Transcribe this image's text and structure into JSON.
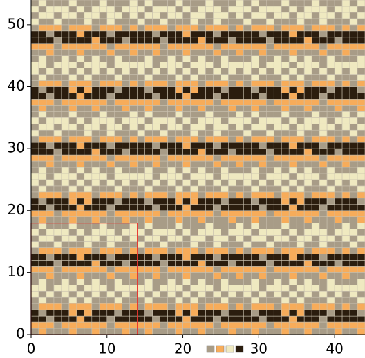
{
  "chart_data": {
    "type": "tile-pattern",
    "palette": [
      "#a89c87",
      "#f7ac5a",
      "#efe9c0",
      "#2b1d0e"
    ],
    "motif": [
      [
        0,
        1,
        0,
        0,
        0,
        1,
        0,
        0,
        1,
        0,
        0,
        0,
        1,
        0
      ],
      [
        1,
        1,
        1,
        0,
        1,
        1,
        1,
        1,
        1,
        1,
        0,
        1,
        1,
        1
      ],
      [
        3,
        3,
        0,
        3,
        3,
        3,
        1,
        3,
        3,
        3,
        0,
        3,
        3,
        3
      ],
      [
        3,
        0,
        3,
        3,
        3,
        1,
        3,
        1,
        3,
        3,
        3,
        0,
        3,
        3
      ],
      [
        0,
        1,
        1,
        1,
        0,
        1,
        1,
        1,
        0,
        1,
        1,
        1,
        0,
        1
      ],
      [
        0,
        2,
        0,
        0,
        0,
        2,
        0,
        2,
        0,
        0,
        0,
        2,
        0,
        0
      ],
      [
        2,
        0,
        2,
        0,
        2,
        0,
        2,
        0,
        2,
        0,
        2,
        0,
        2,
        0
      ],
      [
        2,
        2,
        0,
        2,
        2,
        2,
        0,
        2,
        2,
        2,
        0,
        2,
        2,
        2
      ],
      [
        0,
        2,
        0,
        0,
        2,
        0,
        2,
        0,
        2,
        0,
        0,
        2,
        0,
        0
      ],
      [
        0,
        0,
        1,
        0,
        0,
        0,
        1,
        0,
        0,
        0,
        1,
        0,
        0,
        1
      ],
      [
        1,
        1,
        1,
        0,
        1,
        1,
        1,
        1,
        1,
        1,
        0,
        1,
        1,
        1
      ],
      [
        3,
        3,
        3,
        0,
        3,
        3,
        3,
        3,
        1,
        3,
        3,
        3,
        0,
        3
      ],
      [
        3,
        3,
        0,
        3,
        3,
        3,
        1,
        3,
        3,
        3,
        0,
        3,
        3,
        3
      ],
      [
        0,
        1,
        1,
        1,
        0,
        1,
        1,
        1,
        0,
        1,
        1,
        1,
        0,
        1
      ],
      [
        2,
        0,
        0,
        2,
        0,
        0,
        0,
        2,
        0,
        0,
        2,
        0,
        0,
        0
      ],
      [
        0,
        2,
        2,
        0,
        2,
        2,
        0,
        2,
        2,
        0,
        2,
        2,
        0,
        2
      ],
      [
        2,
        0,
        2,
        2,
        2,
        0,
        2,
        0,
        2,
        2,
        2,
        0,
        2,
        2
      ],
      [
        0,
        2,
        0,
        0,
        0,
        2,
        0,
        0,
        0,
        2,
        0,
        0,
        0,
        2
      ]
    ],
    "xlim": [
      0,
      44
    ],
    "ylim": [
      0,
      54
    ],
    "xticks": [
      0,
      10,
      20,
      30,
      40
    ],
    "yticks": [
      0,
      10,
      20,
      30,
      40,
      50
    ],
    "grid_color": "#c9c0ae",
    "highlight_color": "#e8302a"
  }
}
